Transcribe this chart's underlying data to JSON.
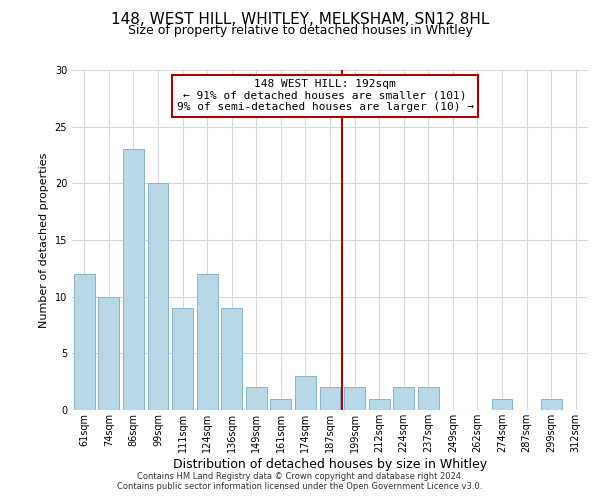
{
  "title": "148, WEST HILL, WHITLEY, MELKSHAM, SN12 8HL",
  "subtitle": "Size of property relative to detached houses in Whitley",
  "xlabel": "Distribution of detached houses by size in Whitley",
  "ylabel": "Number of detached properties",
  "categories": [
    "61sqm",
    "74sqm",
    "86sqm",
    "99sqm",
    "111sqm",
    "124sqm",
    "136sqm",
    "149sqm",
    "161sqm",
    "174sqm",
    "187sqm",
    "199sqm",
    "212sqm",
    "224sqm",
    "237sqm",
    "249sqm",
    "262sqm",
    "274sqm",
    "287sqm",
    "299sqm",
    "312sqm"
  ],
  "values": [
    12,
    10,
    23,
    20,
    9,
    12,
    9,
    2,
    1,
    3,
    2,
    2,
    1,
    2,
    2,
    0,
    0,
    1,
    0,
    1,
    0
  ],
  "bar_color": "#b8d8e8",
  "bar_edge_color": "#8ab4cc",
  "vline_index": 10,
  "vline_color": "#aa0000",
  "annotation_title": "148 WEST HILL: 192sqm",
  "annotation_line1": "← 91% of detached houses are smaller (101)",
  "annotation_line2": "9% of semi-detached houses are larger (10) →",
  "annotation_box_facecolor": "#ffffff",
  "annotation_box_edgecolor": "#aa0000",
  "ylim": [
    0,
    30
  ],
  "yticks": [
    0,
    5,
    10,
    15,
    20,
    25,
    30
  ],
  "footer1": "Contains HM Land Registry data © Crown copyright and database right 2024.",
  "footer2": "Contains public sector information licensed under the Open Government Licence v3.0.",
  "background_color": "#ffffff",
  "grid_color": "#d0d8e0",
  "title_fontsize": 11,
  "subtitle_fontsize": 9,
  "ylabel_fontsize": 8,
  "xlabel_fontsize": 9,
  "tick_fontsize": 7,
  "annotation_fontsize": 8,
  "footer_fontsize": 6
}
